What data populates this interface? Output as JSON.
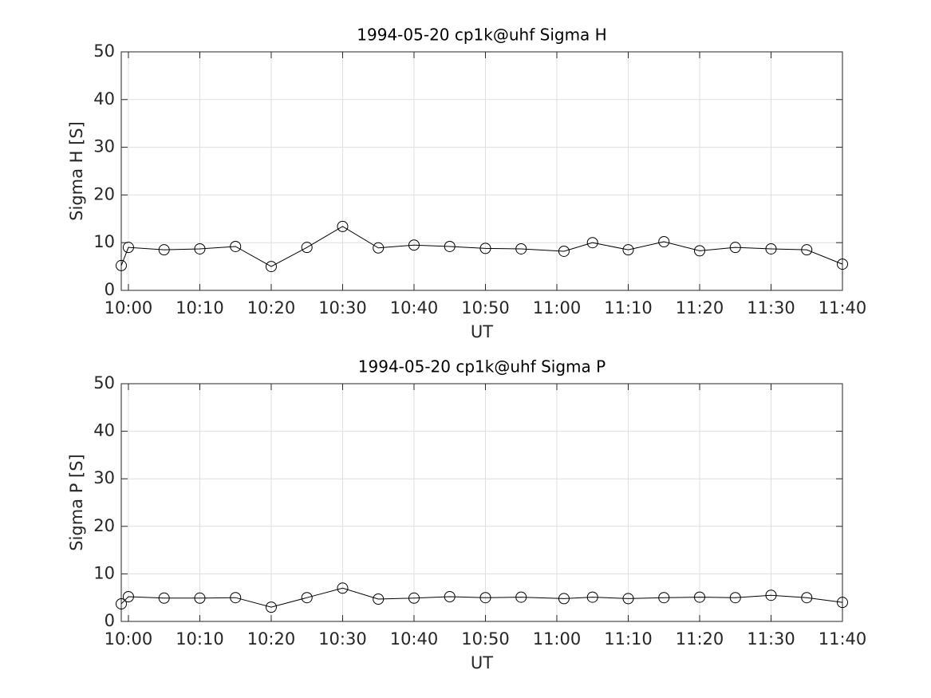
{
  "chart_data": [
    {
      "type": "line",
      "title": "1994-05-20  cp1k@uhf Sigma H",
      "x_label": "UT",
      "y_label": "Sigma H [S]",
      "x": [
        "09:59",
        "10:00",
        "10:05",
        "10:10",
        "10:15",
        "10:20",
        "10:25",
        "10:30",
        "10:35",
        "10:40",
        "10:45",
        "10:50",
        "10:55",
        "11:01",
        "11:05",
        "11:10",
        "11:15",
        "11:20",
        "11:25",
        "11:30",
        "11:35",
        "11:40"
      ],
      "values": [
        5.2,
        9.0,
        8.5,
        8.7,
        9.2,
        5.0,
        9.0,
        13.4,
        8.9,
        9.5,
        9.2,
        8.8,
        8.7,
        8.2,
        10.0,
        8.5,
        10.2,
        8.3,
        9.0,
        8.7,
        8.5,
        5.5
      ],
      "color": "#000000",
      "xlim": [
        "09:59",
        "11:40"
      ],
      "xticks": [
        "10:00",
        "10:10",
        "10:20",
        "10:30",
        "10:40",
        "10:50",
        "11:00",
        "11:10",
        "11:20",
        "11:30",
        "11:40"
      ],
      "ylim": [
        0,
        50
      ],
      "yticks": [
        0,
        10,
        20,
        30,
        40,
        50
      ],
      "grid": true
    },
    {
      "type": "line",
      "title": "1994-05-20  cp1k@uhf Sigma P",
      "x_label": "UT",
      "y_label": "Sigma P [S]",
      "x": [
        "09:59",
        "10:00",
        "10:05",
        "10:10",
        "10:15",
        "10:20",
        "10:25",
        "10:30",
        "10:35",
        "10:40",
        "10:45",
        "10:50",
        "10:55",
        "11:01",
        "11:05",
        "11:10",
        "11:15",
        "11:20",
        "11:25",
        "11:30",
        "11:35",
        "11:40"
      ],
      "values": [
        3.7,
        5.2,
        4.9,
        4.9,
        5.0,
        3.0,
        5.0,
        7.0,
        4.7,
        4.9,
        5.2,
        5.0,
        5.1,
        4.8,
        5.1,
        4.8,
        5.0,
        5.1,
        5.0,
        5.5,
        5.0,
        4.0
      ],
      "color": "#000000",
      "xlim": [
        "09:59",
        "11:40"
      ],
      "xticks": [
        "10:00",
        "10:10",
        "10:20",
        "10:30",
        "10:40",
        "10:50",
        "11:00",
        "11:10",
        "11:20",
        "11:30",
        "11:40"
      ],
      "ylim": [
        0,
        50
      ],
      "yticks": [
        0,
        10,
        20,
        30,
        40,
        50
      ],
      "grid": true
    }
  ]
}
